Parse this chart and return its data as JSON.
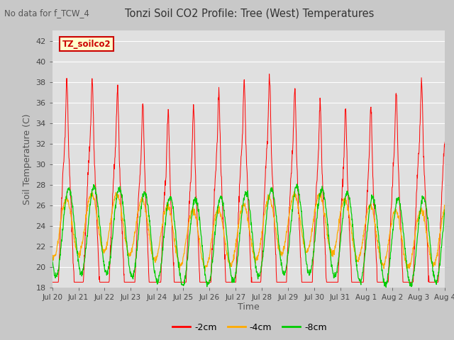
{
  "title": "Tonzi Soil CO2 Profile: Tree (West) Temperatures",
  "subtitle": "No data for f_TCW_4",
  "xlabel": "Time",
  "ylabel": "Soil Temperature (C)",
  "ylim": [
    18,
    43
  ],
  "yticks": [
    18,
    20,
    22,
    24,
    26,
    28,
    30,
    32,
    34,
    36,
    38,
    40,
    42
  ],
  "legend_label": "TZ_soilco2",
  "line_labels": [
    "-2cm",
    "-4cm",
    "-8cm"
  ],
  "line_colors": [
    "#ff0000",
    "#ffaa00",
    "#00cc00"
  ],
  "fig_bg_color": "#c8c8c8",
  "plot_bg_color": "#e0e0e0",
  "n_days": 15.5,
  "xtick_labels": [
    "Jul 20",
    "Jul 21",
    "Jul 22",
    "Jul 23",
    "Jul 24",
    "Jul 25",
    "Jul 26",
    "Jul 27",
    "Jul 28",
    "Jul 29",
    "Jul 30",
    "Jul 31",
    "Aug 1",
    "Aug 2",
    "Aug 3",
    "Aug 4"
  ],
  "seed": 42
}
